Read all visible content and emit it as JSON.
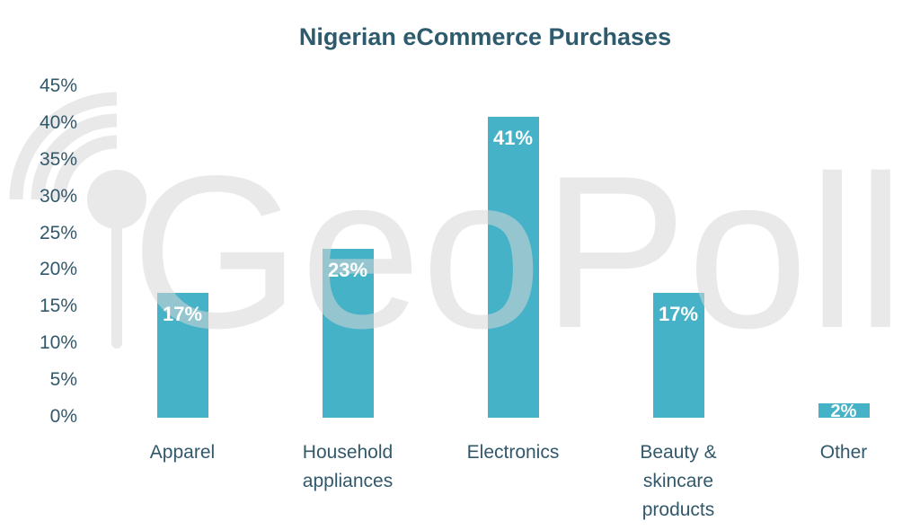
{
  "title": "Nigerian eCommerce Purchases",
  "watermark": {
    "brand": "GeoPoll",
    "color": "#d8d8d8"
  },
  "chart_data": {
    "type": "bar",
    "title": "Nigerian eCommerce Purchases",
    "categories": [
      "Apparel",
      "Household appliances",
      "Electronics",
      "Beauty & skincare products",
      "Other"
    ],
    "values": [
      17,
      23,
      41,
      17,
      2
    ],
    "data_labels": [
      "17%",
      "23%",
      "41%",
      "17%",
      "2%"
    ],
    "xlabel": "",
    "ylabel": "",
    "ylim": [
      0,
      45
    ],
    "y_tick_step": 5,
    "y_tick_labels": [
      "0%",
      "5%",
      "10%",
      "15%",
      "20%",
      "25%",
      "30%",
      "35%",
      "40%",
      "45%"
    ],
    "grid": false,
    "legend": false,
    "bar_color": "#45b2c8",
    "data_label_color": "#ffffff",
    "axis_text_color": "#32586b",
    "title_color": "#2e5a6d"
  }
}
